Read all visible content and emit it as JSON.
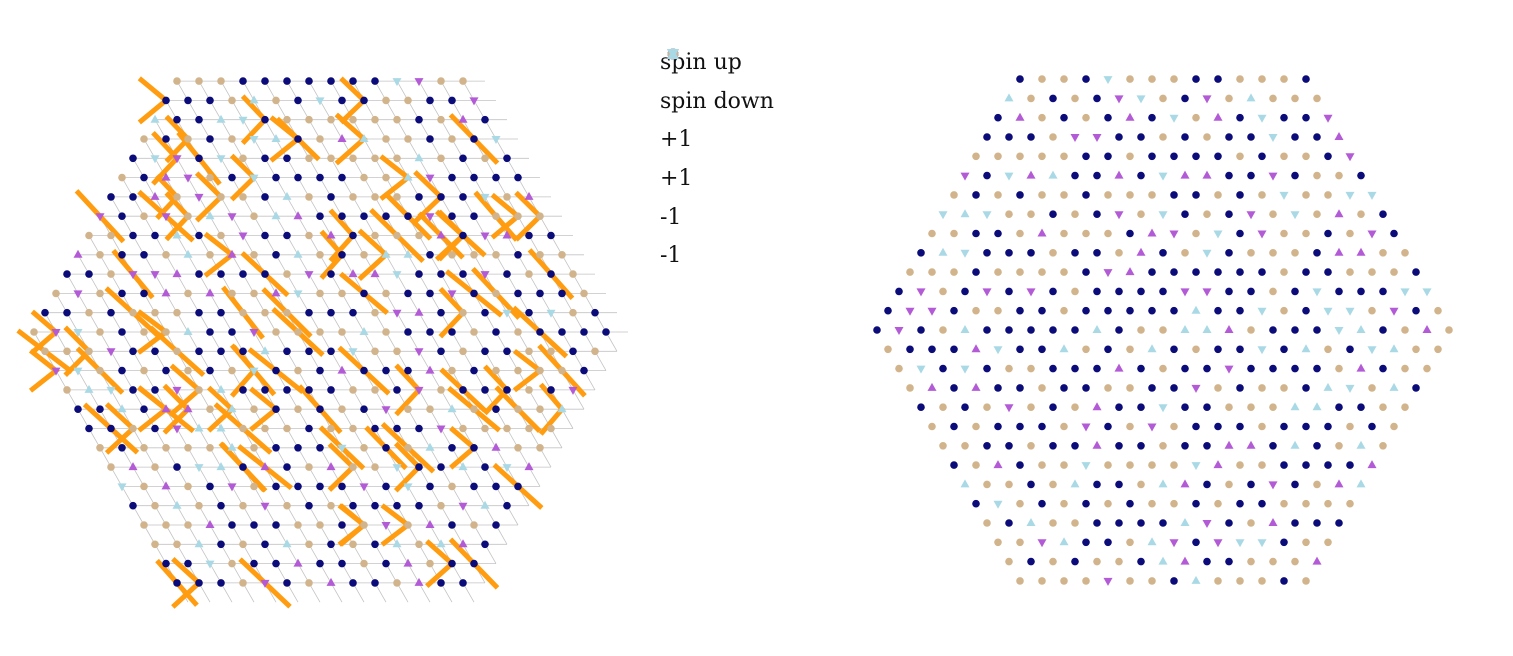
{
  "legend": {
    "items": [
      {
        "label": "spin up",
        "marker": "circle",
        "color": "#0b0b7a"
      },
      {
        "label": "spin down",
        "marker": "circle",
        "color": "#d2b48c"
      },
      {
        "label": "+1",
        "marker": "triangle-up",
        "color": "#b35bd6"
      },
      {
        "label": "+1",
        "marker": "triangle-down",
        "color": "#b35bd6"
      },
      {
        "label": "-1",
        "marker": "triangle-up",
        "color": "#aad9e6"
      },
      {
        "label": "-1",
        "marker": "triangle-down",
        "color": "#aad9e6"
      }
    ]
  },
  "colors": {
    "spin_up": "#0b0b7a",
    "spin_down": "#d2b48c",
    "charge_plus": "#b35bd6",
    "charge_minus": "#aad9e6",
    "string": "#ff9c0f",
    "bond": "#c3c3c3"
  },
  "panels": [
    {
      "name": "left-lattice",
      "shows_strings": true
    },
    {
      "name": "right-lattice",
      "shows_strings": false
    }
  ]
}
